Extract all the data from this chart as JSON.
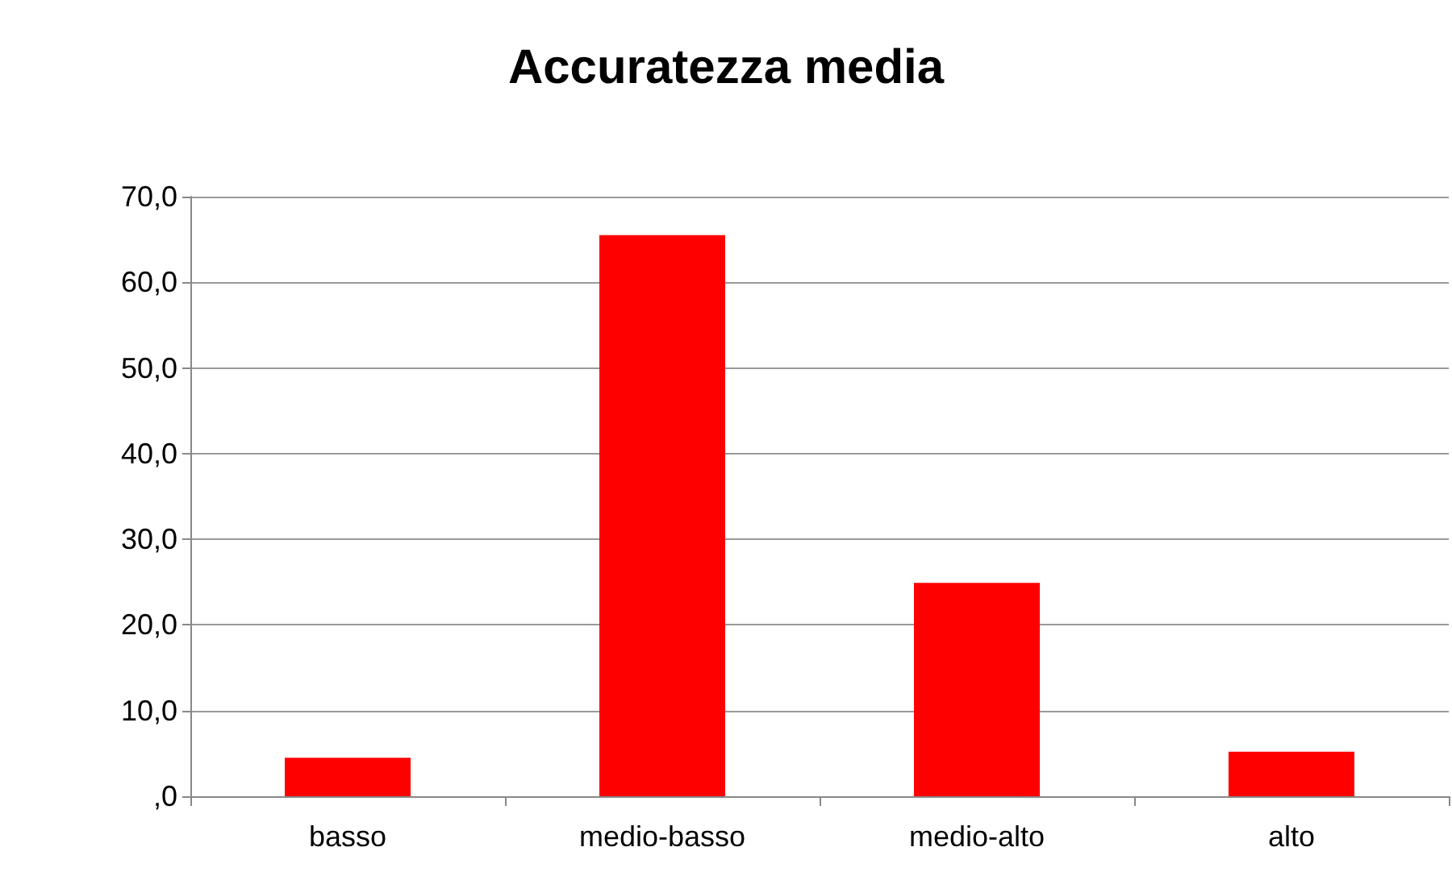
{
  "chart_data": {
    "type": "bar",
    "title": "Accuratezza media",
    "categories": [
      "basso",
      "medio-basso",
      "medio-alto",
      "alto"
    ],
    "values": [
      4.5,
      65.5,
      24.9,
      5.2
    ],
    "color": "#ff0000",
    "ylim": [
      0,
      70
    ],
    "yticks": [
      {
        "value": 0,
        "label": ",0"
      },
      {
        "value": 10,
        "label": "10,0"
      },
      {
        "value": 20,
        "label": "20,0"
      },
      {
        "value": 30,
        "label": "30,0"
      },
      {
        "value": 40,
        "label": "40,0"
      },
      {
        "value": 50,
        "label": "50,0"
      },
      {
        "value": 60,
        "label": "60,0"
      },
      {
        "value": 70,
        "label": "70,0"
      }
    ],
    "grid": "y"
  }
}
